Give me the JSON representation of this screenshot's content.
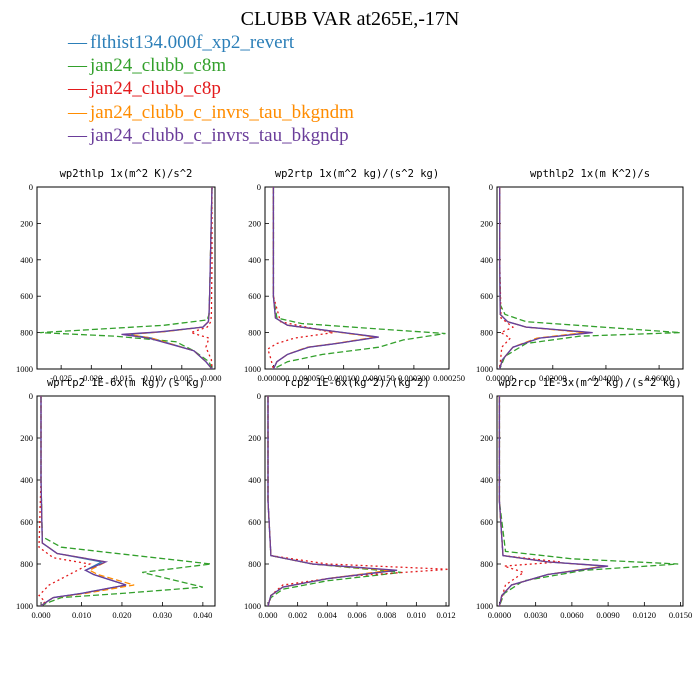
{
  "title": "CLUBB VAR at265E,-17N",
  "legend": [
    {
      "label": "flthist134.000f_xp2_revert",
      "color": "#2c7fb8"
    },
    {
      "label": "jan24_clubb_c8m",
      "color": "#33a02c"
    },
    {
      "label": "jan24_clubb_c8p",
      "color": "#e31a1c"
    },
    {
      "label": "jan24_clubb_c_invrs_tau_bkgndm",
      "color": "#ff8c00"
    },
    {
      "label": "jan24_clubb_c_invrs_tau_bkgndp",
      "color": "#6a3d9a"
    }
  ],
  "chart_data": [
    {
      "type": "line",
      "title": "wp2thlp  1x(m^2 K)/s^2",
      "xlim": [
        -0.029,
        0.0005
      ],
      "ylim": [
        1000,
        0
      ],
      "xticks": [
        -0.025,
        -0.02,
        -0.015,
        -0.01,
        -0.005,
        0.0
      ],
      "xtick_labels": [
        "-0.025",
        "-0.020",
        "-0.015",
        "-0.010",
        "-0.005",
        "0.000"
      ],
      "yticks": [
        0,
        200,
        400,
        600,
        800,
        1000
      ],
      "ytick_labels": [
        "0",
        "200",
        "400",
        "600",
        "800",
        "1000"
      ],
      "series": [
        {
          "x": [
            0,
            -0.0002,
            -0.0004,
            -0.0005,
            -0.0006,
            -0.0015,
            -0.008,
            -0.014,
            -0.01,
            -0.003,
            -0.001,
            0
          ],
          "y": [
            0,
            300,
            600,
            700,
            740,
            770,
            795,
            810,
            830,
            900,
            960,
            1000
          ]
        },
        {
          "x": [
            0,
            -0.0002,
            -0.0004,
            -0.0005,
            -0.0008,
            -0.008,
            -0.0285,
            -0.016,
            -0.006,
            -0.003,
            -0.0005,
            0
          ],
          "y": [
            0,
            300,
            600,
            700,
            730,
            760,
            800,
            820,
            850,
            900,
            960,
            1000
          ]
        },
        {
          "x": [
            0,
            0,
            -0.0001,
            -0.0002,
            -0.0008,
            -0.0035,
            -0.0005,
            -0.001,
            -0.0001,
            0
          ],
          "y": [
            0,
            400,
            700,
            740,
            770,
            800,
            830,
            880,
            950,
            1000
          ]
        },
        {
          "x": [
            0,
            -0.0002,
            -0.0004,
            -0.0005,
            -0.0006,
            -0.0015,
            -0.008,
            -0.014,
            -0.01,
            -0.003,
            -0.001,
            0
          ],
          "y": [
            0,
            300,
            600,
            700,
            740,
            770,
            795,
            810,
            830,
            900,
            960,
            1000
          ]
        },
        {
          "x": [
            0,
            -0.0002,
            -0.0004,
            -0.0005,
            -0.0006,
            -0.0015,
            -0.0085,
            -0.015,
            -0.0105,
            -0.003,
            -0.001,
            0
          ],
          "y": [
            0,
            300,
            600,
            700,
            740,
            770,
            795,
            810,
            830,
            900,
            960,
            1000
          ]
        }
      ]
    },
    {
      "type": "line",
      "title": "wp2rtp  1x(m^2 kg)/(s^2 kg)",
      "xlim": [
        -1.2e-05,
        0.00025
      ],
      "ylim": [
        1000,
        0
      ],
      "xticks": [
        0.0,
        5e-05,
        0.0001,
        0.00015,
        0.0002,
        0.00025
      ],
      "xtick_labels": [
        "0.000000",
        "0.000050",
        "0.000100",
        "0.000150",
        "0.000200",
        "0.000250"
      ],
      "yticks": [
        0,
        200,
        400,
        600,
        800,
        1000
      ],
      "ytick_labels": [
        "0",
        "200",
        "400",
        "600",
        "800",
        "1000"
      ],
      "series": [
        {
          "x": [
            0,
            0,
            0,
            3e-06,
            2e-05,
            8e-05,
            0.000148,
            9e-05,
            5e-05,
            2e-05,
            5e-06,
            0
          ],
          "y": [
            0,
            300,
            600,
            720,
            760,
            790,
            825,
            860,
            880,
            920,
            960,
            1000
          ]
        },
        {
          "x": [
            0,
            0,
            0,
            5e-06,
            4e-05,
            0.00015,
            0.000245,
            0.000185,
            0.00015,
            7e-05,
            2e-05,
            0
          ],
          "y": [
            0,
            300,
            600,
            720,
            750,
            780,
            805,
            840,
            880,
            920,
            960,
            1000
          ]
        },
        {
          "x": [
            0,
            0,
            0,
            1e-05,
            8.5e-05,
            3e-05,
            5e-06,
            -8e-06,
            -4e-06,
            0
          ],
          "y": [
            0,
            300,
            600,
            740,
            800,
            830,
            860,
            890,
            940,
            1000
          ]
        },
        {
          "x": [
            0,
            0,
            0,
            3e-06,
            2e-05,
            7.8e-05,
            0.000145,
            8.8e-05,
            4.8e-05,
            2e-05,
            5e-06,
            0
          ],
          "y": [
            0,
            300,
            600,
            720,
            760,
            790,
            825,
            860,
            880,
            920,
            960,
            1000
          ]
        },
        {
          "x": [
            0,
            0,
            0,
            3e-06,
            2e-05,
            8e-05,
            0.00015,
            9e-05,
            5e-05,
            2e-05,
            5e-06,
            0
          ],
          "y": [
            0,
            300,
            600,
            720,
            760,
            790,
            825,
            860,
            880,
            920,
            960,
            1000
          ]
        }
      ]
    },
    {
      "type": "line",
      "title": "wpthlp2  1x(m K^2)/s",
      "xlim": [
        -0.001,
        0.069
      ],
      "ylim": [
        1000,
        0
      ],
      "xticks": [
        0.0,
        0.02,
        0.04,
        0.06
      ],
      "xtick_labels": [
        "0.00000",
        "0.02000",
        "0.04000",
        "0.06000"
      ],
      "yticks": [
        0,
        200,
        400,
        600,
        800,
        1000
      ],
      "ytick_labels": [
        "0",
        "200",
        "400",
        "600",
        "800",
        "1000"
      ],
      "series": [
        {
          "x": [
            0,
            0,
            0.0002,
            0.003,
            0.01,
            0.034,
            0.015,
            0.005,
            0.001,
            0
          ],
          "y": [
            0,
            400,
            700,
            740,
            770,
            800,
            830,
            880,
            950,
            1000
          ]
        },
        {
          "x": [
            0,
            0,
            0.0003,
            0.002,
            0.01,
            0.068,
            0.03,
            0.01,
            0.002,
            0
          ],
          "y": [
            0,
            400,
            650,
            700,
            740,
            800,
            820,
            860,
            930,
            1000
          ]
        },
        {
          "x": [
            0,
            0,
            0.0005,
            0.005,
            0.0005,
            0.004,
            0.0008,
            0
          ],
          "y": [
            0,
            400,
            720,
            770,
            800,
            830,
            880,
            1000
          ]
        },
        {
          "x": [
            0,
            0,
            0.0002,
            0.003,
            0.01,
            0.032,
            0.014,
            0.005,
            0.001,
            0
          ],
          "y": [
            0,
            400,
            700,
            740,
            770,
            800,
            830,
            880,
            950,
            1000
          ]
        },
        {
          "x": [
            0,
            0,
            0.0002,
            0.003,
            0.01,
            0.035,
            0.015,
            0.005,
            0.001,
            0
          ],
          "y": [
            0,
            400,
            700,
            740,
            770,
            800,
            830,
            880,
            950,
            1000
          ]
        }
      ]
    },
    {
      "type": "line",
      "title": "wprtp2  1E-6x(m kg)/(s kg)",
      "xlim": [
        -0.001,
        0.043
      ],
      "ylim": [
        1000,
        0
      ],
      "xticks": [
        0.0,
        0.01,
        0.02,
        0.03,
        0.04
      ],
      "xtick_labels": [
        "0.000",
        "0.010",
        "0.020",
        "0.030",
        "0.040"
      ],
      "yticks": [
        0,
        200,
        400,
        600,
        800,
        1000
      ],
      "ytick_labels": [
        "0",
        "200",
        "400",
        "600",
        "800",
        "1000"
      ],
      "series": [
        {
          "x": [
            0,
            0,
            0.0003,
            0.004,
            0.015,
            0.011,
            0.013,
            0.021,
            0.01,
            0.003,
            0.001,
            0
          ],
          "y": [
            0,
            400,
            700,
            750,
            790,
            830,
            850,
            900,
            940,
            960,
            985,
            1000
          ]
        },
        {
          "x": [
            0,
            0,
            0.0003,
            0.005,
            0.042,
            0.025,
            0.04,
            0.02,
            0.005,
            0.0015,
            0
          ],
          "y": [
            0,
            400,
            670,
            720,
            800,
            840,
            910,
            940,
            960,
            985,
            1000
          ]
        },
        {
          "x": [
            0,
            0,
            -0.0005,
            0.003,
            0.012,
            0.007,
            0.002,
            -0.0005,
            0.001,
            0
          ],
          "y": [
            0,
            400,
            720,
            770,
            800,
            850,
            900,
            950,
            980,
            1000
          ]
        },
        {
          "x": [
            0,
            0,
            0.0003,
            0.004,
            0.016,
            0.012,
            0.014,
            0.023,
            0.011,
            0.003,
            0.001,
            0
          ],
          "y": [
            0,
            400,
            700,
            750,
            790,
            830,
            850,
            900,
            940,
            960,
            985,
            1000
          ]
        },
        {
          "x": [
            0,
            0,
            0.0003,
            0.004,
            0.016,
            0.011,
            0.013,
            0.021,
            0.01,
            0.003,
            0.001,
            0
          ],
          "y": [
            0,
            400,
            700,
            750,
            790,
            830,
            850,
            900,
            940,
            960,
            985,
            1000
          ]
        }
      ]
    },
    {
      "type": "line",
      "title": "rcp2  1E-6x(kg^2)/(kg^2)",
      "xlim": [
        -0.0002,
        0.0122
      ],
      "ylim": [
        1000,
        0
      ],
      "xticks": [
        0.0,
        0.002,
        0.004,
        0.006,
        0.008,
        0.01,
        0.012
      ],
      "xtick_labels": [
        "0.000",
        "0.002",
        "0.004",
        "0.006",
        "0.008",
        "0.010",
        "0.012"
      ],
      "yticks": [
        0,
        200,
        400,
        600,
        800,
        1000
      ],
      "ytick_labels": [
        "0",
        "200",
        "400",
        "600",
        "800",
        "1000"
      ],
      "series": [
        {
          "x": [
            0,
            0,
            0.0002,
            0.003,
            0.0085,
            0.004,
            0.001,
            0.0002,
            0
          ],
          "y": [
            0,
            500,
            760,
            800,
            830,
            870,
            910,
            950,
            1000
          ]
        },
        {
          "x": [
            0,
            0,
            0.0002,
            0.003,
            0.009,
            0.004,
            0.001,
            0.0002,
            0
          ],
          "y": [
            0,
            500,
            760,
            800,
            840,
            880,
            920,
            960,
            1000
          ]
        },
        {
          "x": [
            0,
            0,
            0.0002,
            0.004,
            0.0122,
            0.005,
            0.001,
            0.0002,
            0
          ],
          "y": [
            0,
            500,
            760,
            800,
            825,
            860,
            900,
            950,
            1000
          ]
        },
        {
          "x": [
            0,
            0,
            0.0002,
            0.003,
            0.0082,
            0.004,
            0.001,
            0.0002,
            0
          ],
          "y": [
            0,
            500,
            760,
            800,
            830,
            870,
            910,
            950,
            1000
          ]
        },
        {
          "x": [
            0,
            0,
            0.0002,
            0.003,
            0.0087,
            0.004,
            0.001,
            0.0002,
            0
          ],
          "y": [
            0,
            500,
            760,
            800,
            830,
            870,
            910,
            950,
            1000
          ]
        }
      ]
    },
    {
      "type": "line",
      "title": "wp2rcp  1E-3x(m^2 kg)/(s^2 kg)",
      "xlim": [
        -0.0002,
        0.0152
      ],
      "ylim": [
        1000,
        0
      ],
      "xticks": [
        0.0,
        0.003,
        0.006,
        0.009,
        0.012,
        0.015
      ],
      "xtick_labels": [
        "0.0000",
        "0.0030",
        "0.0060",
        "0.0090",
        "0.0120",
        "0.0150"
      ],
      "yticks": [
        0,
        200,
        400,
        600,
        800,
        1000
      ],
      "ytick_labels": [
        "0",
        "200",
        "400",
        "600",
        "800",
        "1000"
      ],
      "series": [
        {
          "x": [
            0,
            0,
            0.0003,
            0.004,
            0.0088,
            0.004,
            0.001,
            0.0002,
            0
          ],
          "y": [
            0,
            500,
            760,
            790,
            810,
            850,
            900,
            950,
            1000
          ]
        },
        {
          "x": [
            0,
            0,
            0.0005,
            0.006,
            0.0148,
            0.007,
            0.002,
            0.0004,
            0
          ],
          "y": [
            0,
            500,
            740,
            775,
            800,
            830,
            880,
            940,
            1000
          ]
        },
        {
          "x": [
            0,
            0,
            0.0003,
            0.005,
            0.0004,
            0.002,
            0.0005,
            0
          ],
          "y": [
            0,
            500,
            760,
            790,
            810,
            840,
            900,
            1000
          ]
        },
        {
          "x": [
            0,
            0,
            0.0003,
            0.004,
            0.0087,
            0.004,
            0.001,
            0.0002,
            0
          ],
          "y": [
            0,
            500,
            760,
            790,
            810,
            850,
            900,
            950,
            1000
          ]
        },
        {
          "x": [
            0,
            0,
            0.0003,
            0.004,
            0.009,
            0.004,
            0.001,
            0.0002,
            0
          ],
          "y": [
            0,
            500,
            760,
            790,
            810,
            850,
            900,
            950,
            1000
          ]
        }
      ]
    }
  ]
}
